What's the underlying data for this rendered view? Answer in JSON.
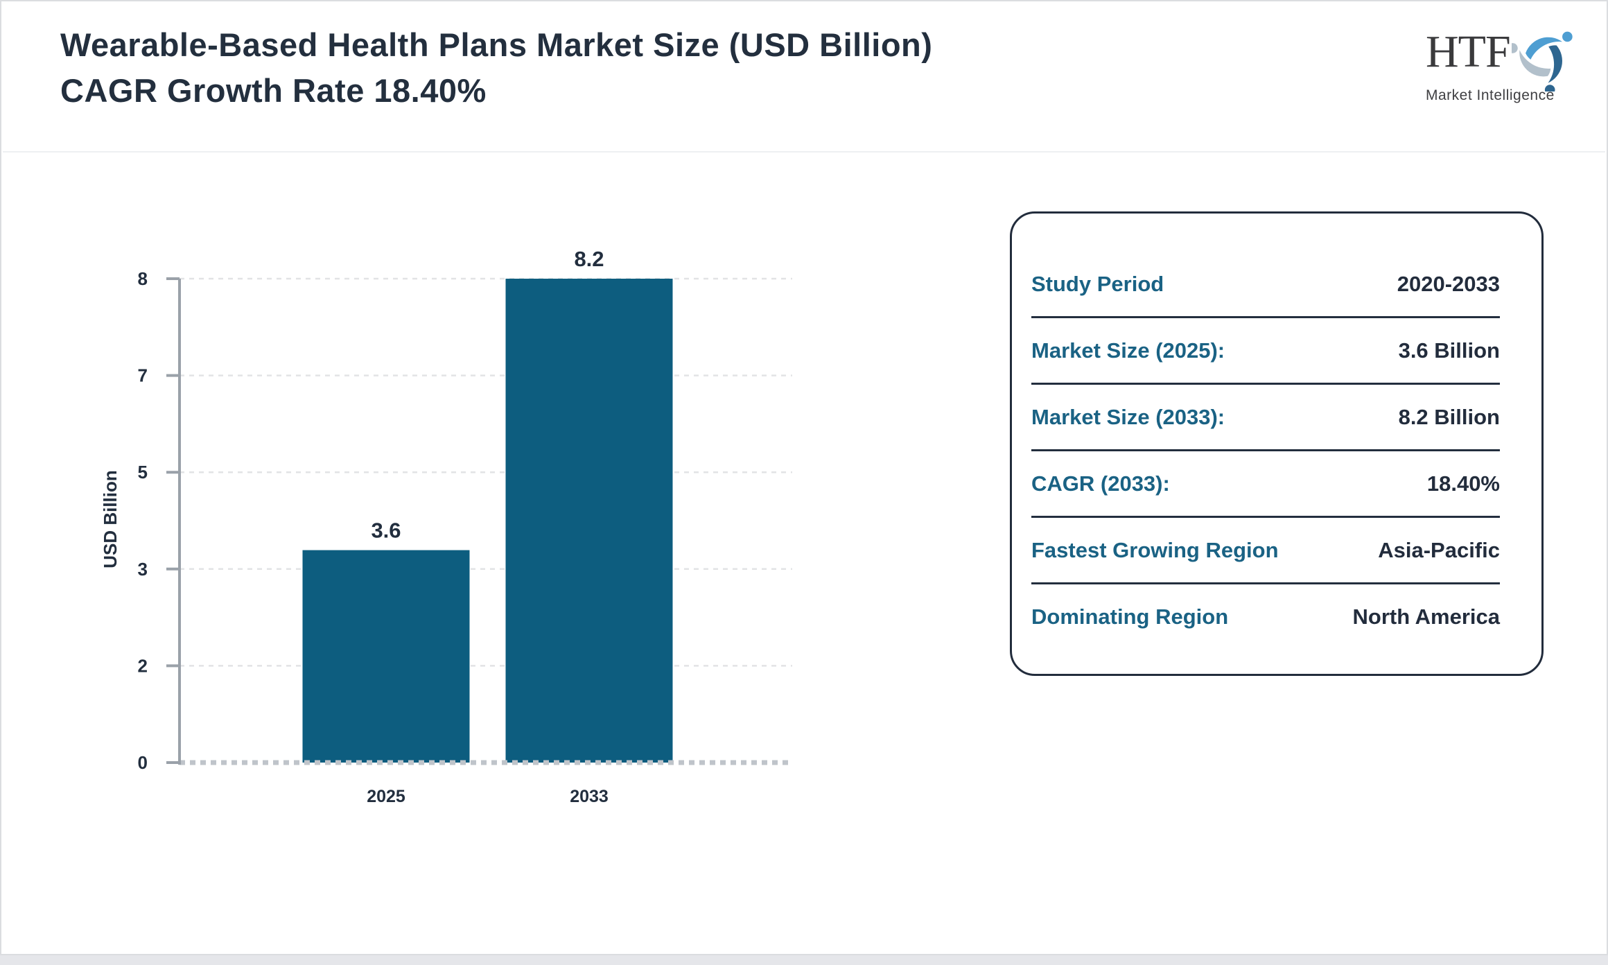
{
  "header": {
    "title": "Wearable-Based Health Plans Market Size (USD Billion) CAGR Growth Rate 18.40%",
    "logo": {
      "acronym": "HTF",
      "caption": "Market Intelligence"
    }
  },
  "chart_data": {
    "type": "bar",
    "title": "",
    "categories": [
      "2025",
      "2033"
    ],
    "values": [
      3.6,
      8.2
    ],
    "value_labels": [
      "3.6",
      "8.2"
    ],
    "xlabel": "",
    "ylabel": "USD Billion",
    "y_ticks": [
      0,
      2,
      3,
      5,
      7,
      8
    ],
    "ylim": [
      0,
      8.2
    ],
    "grid": "horizontal-dashed",
    "legend": "none",
    "bar_color": "#0d5d7f"
  },
  "info_panel": {
    "rows": [
      {
        "label": "Study Period",
        "value": "2020-2033"
      },
      {
        "label": "Market Size (2025):",
        "value": "3.6 Billion"
      },
      {
        "label": "Market Size (2033):",
        "value": "8.2 Billion"
      },
      {
        "label": "CAGR (2033):",
        "value": "18.40%"
      },
      {
        "label": "Fastest Growing Region",
        "value": "Asia-Pacific"
      },
      {
        "label": "Dominating Region",
        "value": "North America"
      }
    ],
    "label_color": "#1a6284",
    "value_color": "#222c3c",
    "border_color": "#222c3c"
  },
  "colors": {
    "title_text": "#232f3e",
    "bar": "#0d5d7f",
    "axis": "#9aa1a9",
    "gridline": "#e2e3e5",
    "baseline": "#bfc4ca",
    "chart_text": "#222e3e",
    "logo_light_blue": "#4e9ed2",
    "logo_steel_blue": "#2e6690",
    "logo_gray_blue": "#b2c0cb",
    "logo_text": "#3a3a3c"
  }
}
